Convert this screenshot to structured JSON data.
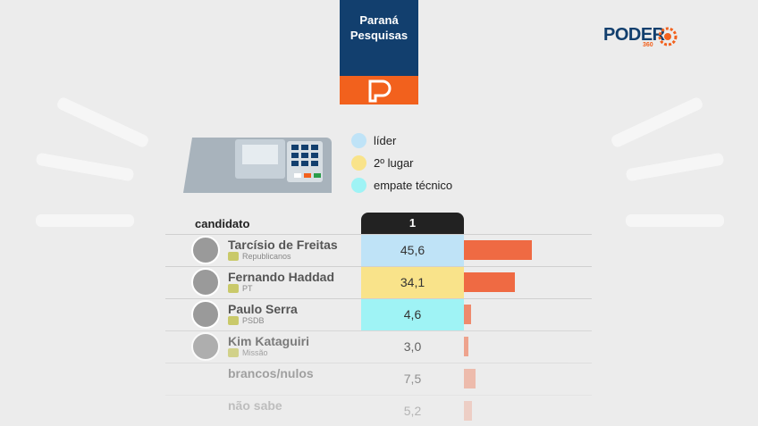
{
  "header": {
    "source": "Paraná Pesquisas",
    "brand": "PODER",
    "brand_sub": "360"
  },
  "legend": [
    {
      "label": "líder",
      "color": "#bfe3f7"
    },
    {
      "label": "2º lugar",
      "color": "#f9e38a"
    },
    {
      "label": "empate técnico",
      "color": "#9ff3f5"
    }
  ],
  "table": {
    "column_header": "candidato",
    "round_header": "1",
    "bar_color": "#ef6a43",
    "rows": [
      {
        "name": "Tarcísio de Freitas",
        "party": "Republicanos",
        "value": 45.6,
        "value_label": "45,6",
        "cell_color": "#bfe3f7"
      },
      {
        "name": "Fernando Haddad",
        "party": "PT",
        "value": 34.1,
        "value_label": "34,1",
        "cell_color": "#f9e38a"
      },
      {
        "name": "Paulo Serra",
        "party": "PSDB",
        "value": 4.6,
        "value_label": "4,6",
        "cell_color": "#9ff3f5"
      },
      {
        "name": "Kim Kataguiri",
        "party": "Missão",
        "value": 3.0,
        "value_label": "3,0"
      },
      {
        "name": "brancos/nulos",
        "value": 7.5,
        "value_label": "7,5"
      },
      {
        "name": "não sabe",
        "value": 5.2,
        "value_label": "5,2"
      }
    ]
  }
}
